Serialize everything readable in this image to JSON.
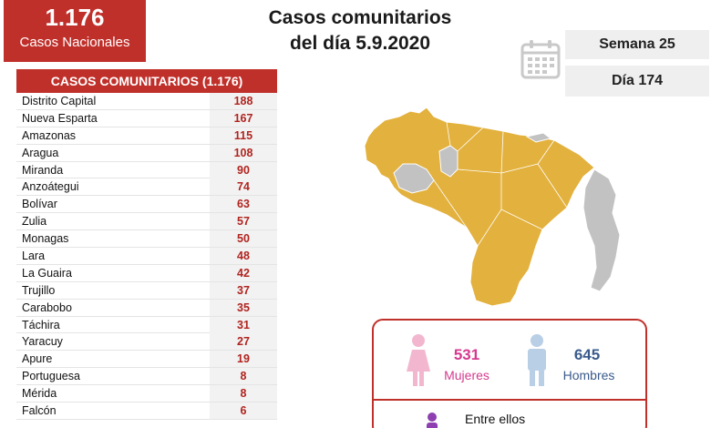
{
  "header": {
    "total_number": "1.176",
    "total_label": "Casos Nacionales",
    "title_line1": "Casos comunitarios",
    "title_line2": "del día 5.9.2020",
    "week": "Semana 25",
    "day": "Día 174",
    "calendar_icon": "calendar-icon"
  },
  "table": {
    "header": "CASOS COMUNITARIOS (1.176)",
    "rows": [
      {
        "name": "Distrito Capital",
        "value": "188"
      },
      {
        "name": "Nueva Esparta",
        "value": "167"
      },
      {
        "name": "Amazonas",
        "value": "115"
      },
      {
        "name": "Aragua",
        "value": "108"
      },
      {
        "name": "Miranda",
        "value": "90"
      },
      {
        "name": "Anzoátegui",
        "value": "74"
      },
      {
        "name": "Bolívar",
        "value": "63"
      },
      {
        "name": "Zulia",
        "value": "57"
      },
      {
        "name": "Monagas",
        "value": "50"
      },
      {
        "name": "Lara",
        "value": "48"
      },
      {
        "name": "La Guaira",
        "value": "42"
      },
      {
        "name": "Trujillo",
        "value": "37"
      },
      {
        "name": "Carabobo",
        "value": "35"
      },
      {
        "name": "Táchira",
        "value": "31"
      },
      {
        "name": "Yaracuy",
        "value": "27"
      },
      {
        "name": "Apure",
        "value": "19"
      },
      {
        "name": "Portuguesa",
        "value": "8"
      },
      {
        "name": "Mérida",
        "value": "8"
      },
      {
        "name": "Falcón",
        "value": "6"
      }
    ]
  },
  "gender": {
    "women_count": "531",
    "women_label": "Mujeres",
    "men_count": "645",
    "men_label": "Hombres",
    "children_text": "Entre ellos"
  },
  "colors": {
    "accent_red": "#c0302b",
    "map_yellow": "#e3b13d",
    "map_gray": "#c2c2c2",
    "women_pink": "#d63a8e",
    "men_blue": "#3a5b8c"
  }
}
